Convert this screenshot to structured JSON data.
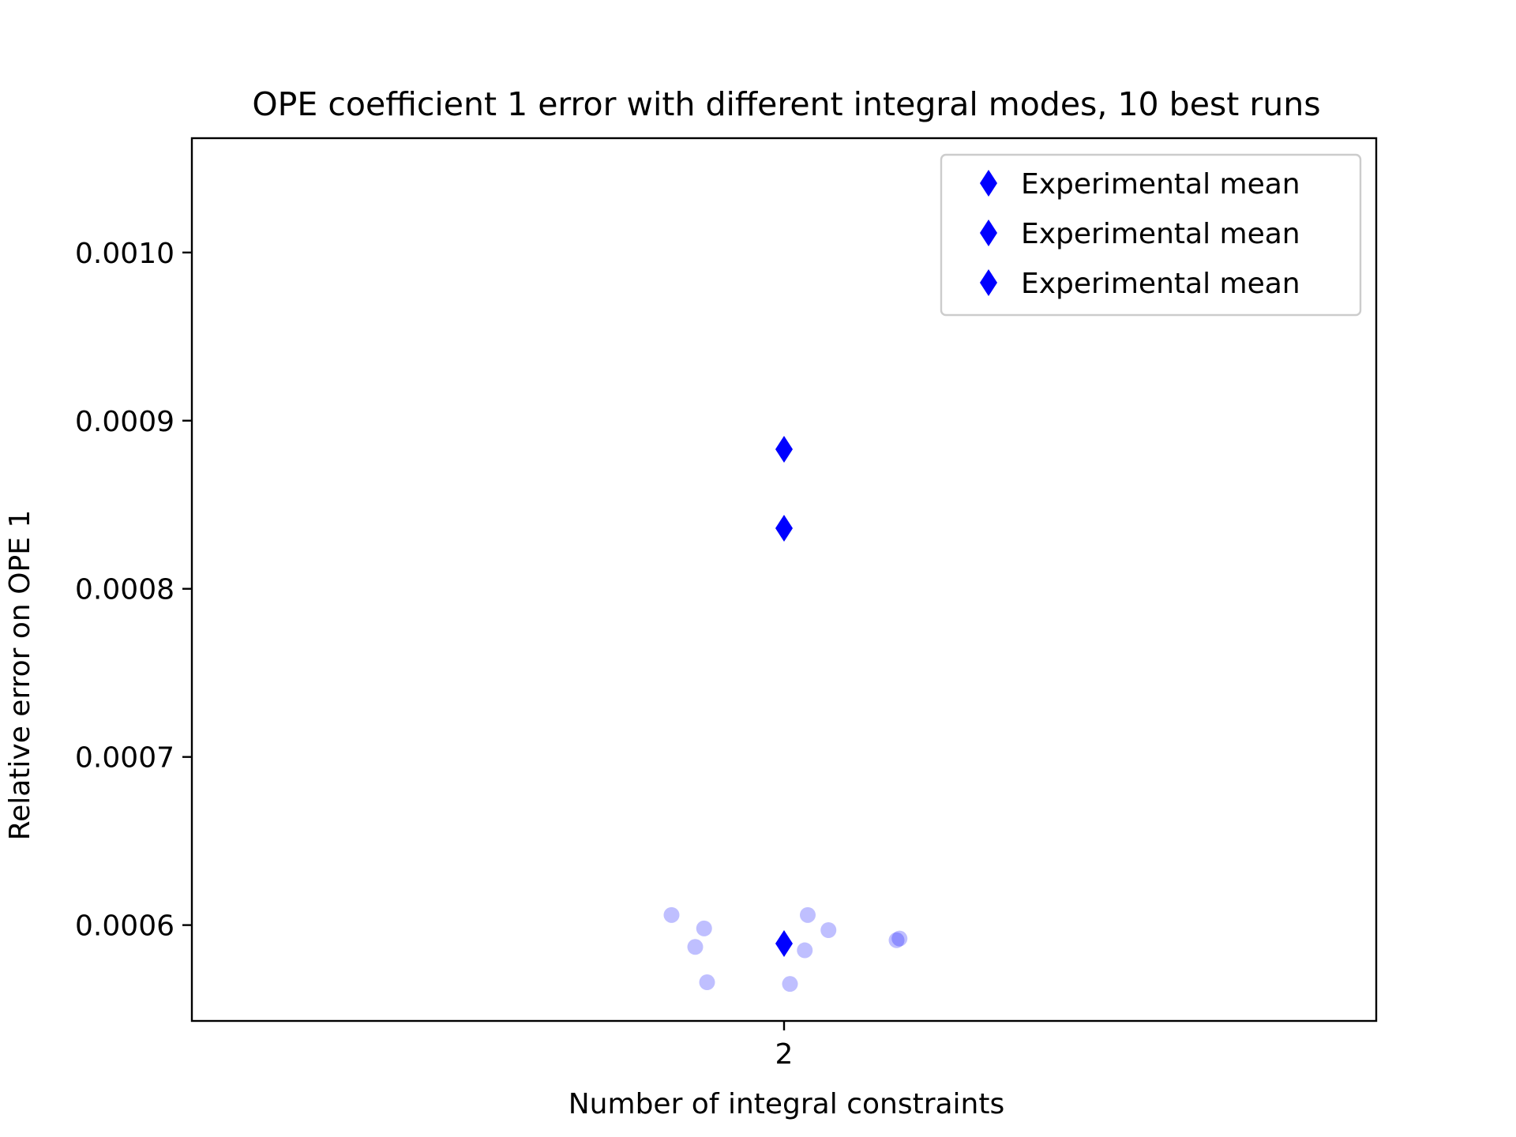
{
  "chart_data": {
    "type": "scatter",
    "title": "OPE coefficient 1 error with different integral modes, 10 best runs",
    "xlabel": "Number of integral constraints",
    "ylabel": "Relative error on OPE 1",
    "x_categories": [
      "2"
    ],
    "xlim": [
      -2.0,
      2.0
    ],
    "ylim": [
      0.000543,
      0.001068
    ],
    "y_ticks": [
      "0.0006",
      "0.0007",
      "0.0008",
      "0.0009",
      "0.0010"
    ],
    "grid": false,
    "legend_position": "top-right",
    "legend": [
      "Experimental mean",
      "Experimental mean",
      "Experimental mean"
    ],
    "series": [
      {
        "name": "Experimental mean",
        "kind": "mean",
        "marker": "diamond",
        "color": "#0000ff",
        "x": [
          0
        ],
        "y": [
          0.000883
        ]
      },
      {
        "name": "Experimental mean",
        "kind": "mean",
        "marker": "diamond",
        "color": "#0000ff",
        "x": [
          0
        ],
        "y": [
          0.000836
        ]
      },
      {
        "name": "Experimental mean",
        "kind": "mean",
        "marker": "diamond",
        "color": "#0000ff",
        "x": [
          0
        ],
        "y": [
          0.000589
        ]
      },
      {
        "kind": "runs",
        "marker": "circle",
        "color": "#0000ff",
        "opacity": 0.25,
        "x": [
          -0.38,
          -0.27,
          -0.3,
          -0.26,
          0.02,
          0.08,
          0.07,
          0.15,
          0.38,
          0.39
        ],
        "y": [
          0.000606,
          0.000598,
          0.000587,
          0.000566,
          0.000565,
          0.000606,
          0.000585,
          0.000597,
          0.000591,
          0.000592
        ]
      }
    ]
  }
}
